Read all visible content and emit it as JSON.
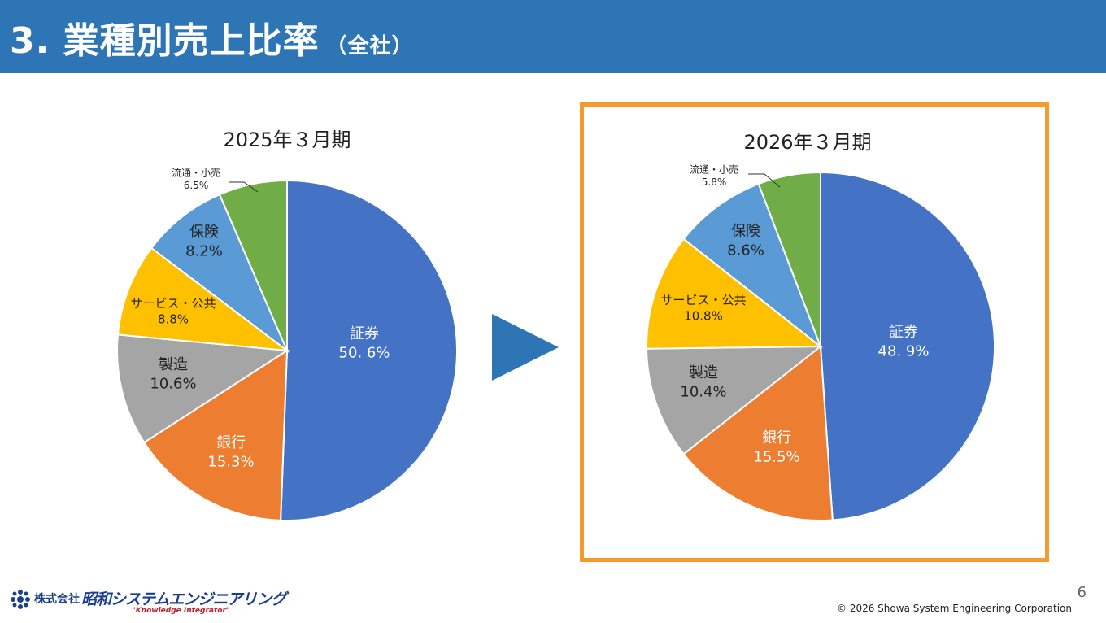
{
  "header": {
    "title": "3. 業種別売上比率",
    "subtitle": "（全社）"
  },
  "footer": {
    "page_number": "6",
    "copyright": "© 2026 Showa System Engineering Corporation",
    "logo": {
      "company_prefix": "株式会社",
      "brand": "昭和システムエンジニアリング",
      "tagline": "\"Knowledge Integrator\""
    }
  },
  "colors": {
    "header_bg": "#2e75b6",
    "highlight_border": "#f79a2e",
    "arrow": "#2e75b6",
    "securities": "#4472c4",
    "banking": "#ed7d31",
    "manufacturing": "#a5a5a5",
    "services": "#ffc000",
    "insurance": "#5b9bd5",
    "retail": "#70ad47"
  },
  "chart_data": [
    {
      "type": "pie",
      "title": "2025年３月期",
      "slices": [
        {
          "label": "証券",
          "value_label": "50. 6%",
          "value": 50.6,
          "color": "#4472c4"
        },
        {
          "label": "銀行",
          "value_label": "15.3%",
          "value": 15.3,
          "color": "#ed7d31"
        },
        {
          "label": "製造",
          "value_label": "10.6%",
          "value": 10.6,
          "color": "#a5a5a5"
        },
        {
          "label": "サービス・公共",
          "value_label": "8.8%",
          "value": 8.8,
          "color": "#ffc000"
        },
        {
          "label": "保険",
          "value_label": "8.2%",
          "value": 8.2,
          "color": "#5b9bd5"
        },
        {
          "label": "流通・小売",
          "value_label": "6.5%",
          "value": 6.5,
          "color": "#70ad47"
        }
      ]
    },
    {
      "type": "pie",
      "title": "2026年３月期",
      "slices": [
        {
          "label": "証券",
          "value_label": "48. 9%",
          "value": 48.9,
          "color": "#4472c4"
        },
        {
          "label": "銀行",
          "value_label": "15.5%",
          "value": 15.5,
          "color": "#ed7d31"
        },
        {
          "label": "製造",
          "value_label": "10.4%",
          "value": 10.4,
          "color": "#a5a5a5"
        },
        {
          "label": "サービス・公共",
          "value_label": "10.8%",
          "value": 10.8,
          "color": "#ffc000"
        },
        {
          "label": "保険",
          "value_label": "8.6%",
          "value": 8.6,
          "color": "#5b9bd5"
        },
        {
          "label": "流通・小売",
          "value_label": "5.8%",
          "value": 5.8,
          "color": "#70ad47"
        }
      ]
    }
  ]
}
